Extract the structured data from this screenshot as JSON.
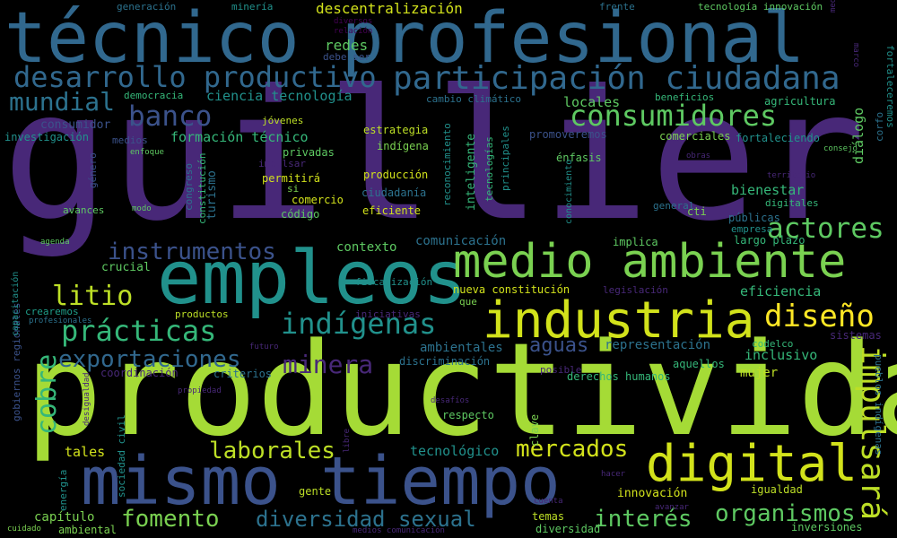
{
  "cloud": {
    "background": "#000000",
    "words": [
      {
        "text": "guillier",
        "color": "#482878"
      },
      {
        "text": "productividad",
        "color": "#a5db36"
      },
      {
        "text": "técnico profesional",
        "color": "#31688e"
      },
      {
        "text": "empleos",
        "color": "#21918c"
      },
      {
        "text": "mismo tiempo",
        "color": "#3b528b"
      },
      {
        "text": "medio ambiente",
        "color": "#7ad151"
      },
      {
        "text": "industria",
        "color": "#d2e21b"
      },
      {
        "text": "digital",
        "color": "#d2e21b"
      },
      {
        "text": "participación ciudadana",
        "color": "#31688e"
      },
      {
        "text": "desarrollo productivo",
        "color": "#31688e"
      },
      {
        "text": "consumidores",
        "color": "#5ec962"
      },
      {
        "text": "banco",
        "color": "#3b528b"
      },
      {
        "text": "mundial",
        "color": "#2c728e"
      },
      {
        "text": "diseño",
        "color": "#fde725"
      },
      {
        "text": "actores",
        "color": "#5ec962"
      },
      {
        "text": "impulsará",
        "color": "#bddf26"
      },
      {
        "text": "instrumentos",
        "color": "#3b528b"
      },
      {
        "text": "litio",
        "color": "#bddf26"
      },
      {
        "text": "prácticas",
        "color": "#35b779"
      },
      {
        "text": "indígenas",
        "color": "#21918c"
      },
      {
        "text": "exportaciones",
        "color": "#31688e"
      },
      {
        "text": "minera",
        "color": "#482878"
      },
      {
        "text": "aguas",
        "color": "#3b528b"
      },
      {
        "text": "cobre",
        "color": "#35b779"
      },
      {
        "text": "laborales",
        "color": "#bddf26"
      },
      {
        "text": "mercados",
        "color": "#d2e21b"
      },
      {
        "text": "fomento",
        "color": "#7ad151"
      },
      {
        "text": "diversidad sexual",
        "color": "#2c728e"
      },
      {
        "text": "interés",
        "color": "#5ec962"
      },
      {
        "text": "organismos",
        "color": "#5ec962"
      },
      {
        "text": "descentralización",
        "color": "#d2e21b"
      },
      {
        "text": "redes",
        "color": "#5ec962"
      },
      {
        "text": "debe ser",
        "color": "#3b528b"
      },
      {
        "text": "diversos",
        "color": "#440154"
      },
      {
        "text": "relación",
        "color": "#440154"
      },
      {
        "text": "generación",
        "color": "#2c728e"
      },
      {
        "text": "minería",
        "color": "#21918c"
      },
      {
        "text": "frente",
        "color": "#2c728e"
      },
      {
        "text": "tecnología innovación",
        "color": "#5ec962"
      },
      {
        "text": "mediano",
        "color": "#482878"
      },
      {
        "text": "marco",
        "color": "#482878"
      },
      {
        "text": "crearemos",
        "color": "#1f9e89"
      },
      {
        "text": "fortaleceremos",
        "color": "#21918c"
      },
      {
        "text": "ciencia tecnología",
        "color": "#21918c"
      },
      {
        "text": "democracia",
        "color": "#35b779"
      },
      {
        "text": "cambio climático",
        "color": "#2c728e"
      },
      {
        "text": "beneficios",
        "color": "#35b779"
      },
      {
        "text": "agricultura",
        "color": "#35b779"
      },
      {
        "text": "consumidor",
        "color": "#3b528b"
      },
      {
        "text": "jóvenes",
        "color": "#bddf26"
      },
      {
        "text": "reconocimiento",
        "color": "#21918c"
      },
      {
        "text": "inteligente",
        "color": "#35b779"
      },
      {
        "text": "tecnologías",
        "color": "#35b779"
      },
      {
        "text": "principales",
        "color": "#21918c"
      },
      {
        "text": "locales",
        "color": "#5ec962"
      },
      {
        "text": "diálogo",
        "color": "#5ec962"
      },
      {
        "text": "corfo",
        "color": "#2c728e"
      },
      {
        "text": "investigación",
        "color": "#21918c"
      },
      {
        "text": "medios",
        "color": "#3b528b"
      },
      {
        "text": "formación técnico",
        "color": "#35b779"
      },
      {
        "text": "estrategia",
        "color": "#bddf26"
      },
      {
        "text": "indígena",
        "color": "#7ad151"
      },
      {
        "text": "promoveremos",
        "color": "#3b528b"
      },
      {
        "text": "comerciales",
        "color": "#7ad151"
      },
      {
        "text": "fortaleciendo",
        "color": "#21918c"
      },
      {
        "text": "consejo",
        "color": "#5ec962"
      },
      {
        "text": "enfoque",
        "color": "#5ec962"
      },
      {
        "text": "impulsar",
        "color": "#482878"
      },
      {
        "text": "privadas",
        "color": "#5ec962"
      },
      {
        "text": "producción",
        "color": "#d2e21b"
      },
      {
        "text": "énfasis",
        "color": "#5ec962"
      },
      {
        "text": "obras",
        "color": "#482878"
      },
      {
        "text": "género",
        "color": "#3b528b"
      },
      {
        "text": "congreso",
        "color": "#2c728e"
      },
      {
        "text": "constitución",
        "color": "#35b779"
      },
      {
        "text": "turismo",
        "color": "#2c728e"
      },
      {
        "text": "permitirá",
        "color": "#d2e21b"
      },
      {
        "text": "si",
        "color": "#7ad151"
      },
      {
        "text": "comercio",
        "color": "#d2e21b"
      },
      {
        "text": "código",
        "color": "#5ec962"
      },
      {
        "text": "ciudadanía",
        "color": "#2c728e"
      },
      {
        "text": "eficiente",
        "color": "#d2e21b"
      },
      {
        "text": "conocimiento",
        "color": "#21918c"
      },
      {
        "text": "bienestar",
        "color": "#35b779"
      },
      {
        "text": "digitales",
        "color": "#35b779"
      },
      {
        "text": "territorio",
        "color": "#482878"
      },
      {
        "text": "avances",
        "color": "#5ec962"
      },
      {
        "text": "modo",
        "color": "#5ec962"
      },
      {
        "text": "general",
        "color": "#2c728e"
      },
      {
        "text": "cti",
        "color": "#7ad151"
      },
      {
        "text": "públicas",
        "color": "#2c728e"
      },
      {
        "text": "empresa",
        "color": "#21918c"
      },
      {
        "text": "agenda",
        "color": "#5ec962"
      },
      {
        "text": "comunicación",
        "color": "#2c728e"
      },
      {
        "text": "implica",
        "color": "#5ec962"
      },
      {
        "text": "largo plazo",
        "color": "#35b779"
      },
      {
        "text": "contexto",
        "color": "#5ec962"
      },
      {
        "text": "crucial",
        "color": "#5ec962"
      },
      {
        "text": "fiscalización",
        "color": "#21918c"
      },
      {
        "text": "gobiernos regionales",
        "color": "#3b528b"
      },
      {
        "text": "nueva constitución",
        "color": "#d2e21b"
      },
      {
        "text": "legislación",
        "color": "#482878"
      },
      {
        "text": "eficiencia",
        "color": "#35b779"
      },
      {
        "text": "profesionales",
        "color": "#2c728e"
      },
      {
        "text": "que",
        "color": "#7ad151"
      },
      {
        "text": "productos",
        "color": "#bddf26"
      },
      {
        "text": "iniciativas",
        "color": "#482878"
      },
      {
        "text": "capacitación",
        "color": "#21918c"
      },
      {
        "text": "ambientales",
        "color": "#2c728e"
      },
      {
        "text": "representación",
        "color": "#2c728e"
      },
      {
        "text": "codelco",
        "color": "#35b779"
      },
      {
        "text": "sistemas",
        "color": "#482878"
      },
      {
        "text": "futuro",
        "color": "#482878"
      },
      {
        "text": "discriminación",
        "color": "#2c728e"
      },
      {
        "text": "aquellos",
        "color": "#35b779"
      },
      {
        "text": "inclusivo",
        "color": "#35b779"
      },
      {
        "text": "coordinación",
        "color": "#482878"
      },
      {
        "text": "criterios",
        "color": "#2c728e"
      },
      {
        "text": "posible",
        "color": "#482878"
      },
      {
        "text": "derechos humanos",
        "color": "#35b779"
      },
      {
        "text": "mujer",
        "color": "#bddf26"
      },
      {
        "text": "pueblos indígenas",
        "color": "#2c728e"
      },
      {
        "text": "desigualdad",
        "color": "#482878"
      },
      {
        "text": "propiedad",
        "color": "#482878"
      },
      {
        "text": "sociedad civil",
        "color": "#21918c"
      },
      {
        "text": "desafíos",
        "color": "#482878"
      },
      {
        "text": "respecto",
        "color": "#5ec962"
      },
      {
        "text": "clave",
        "color": "#7ad151"
      },
      {
        "text": "tales",
        "color": "#d2e21b"
      },
      {
        "text": "tecnológico",
        "color": "#21918c"
      },
      {
        "text": "libre",
        "color": "#482878"
      },
      {
        "text": "energía",
        "color": "#21918c"
      },
      {
        "text": "hacer",
        "color": "#482878"
      },
      {
        "text": "innovación",
        "color": "#d2e21b"
      },
      {
        "text": "igualdad",
        "color": "#bddf26"
      },
      {
        "text": "gente",
        "color": "#bddf26"
      },
      {
        "text": "avanzar",
        "color": "#482878"
      },
      {
        "text": "cuenta",
        "color": "#482878"
      },
      {
        "text": "capítulo",
        "color": "#7ad151"
      },
      {
        "text": "temas",
        "color": "#bddf26"
      },
      {
        "text": "diversidad",
        "color": "#5ec962"
      },
      {
        "text": "inversiones",
        "color": "#5ec962"
      },
      {
        "text": "cuidado",
        "color": "#7ad151"
      },
      {
        "text": "ambiental",
        "color": "#7ad151"
      },
      {
        "text": "medios comunicación",
        "color": "#482878"
      }
    ]
  }
}
